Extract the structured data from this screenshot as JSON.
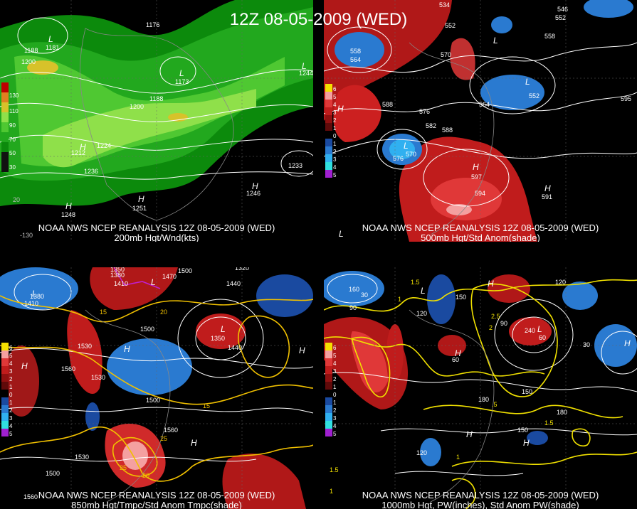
{
  "main_title": "12Z 08-05-2009 (WED)",
  "panels": [
    {
      "caption_line1": "NOAA NWS NCEP REANALYSIS 12Z 08-05-2009 (WED)",
      "caption_line2": "200mb Hgt/Wnd(kts)",
      "legend_values": [
        "130",
        "110",
        "90",
        "70",
        "50",
        "30"
      ],
      "contour_labels": [
        "1176",
        "1188",
        "1200",
        "1181",
        "1173",
        "1188",
        "1200",
        "1224",
        "1212",
        "1236",
        "1233",
        "1246",
        "1251",
        "1248",
        "1244"
      ],
      "pressure_centers": [
        "L",
        "L",
        "L",
        "H",
        "H",
        "H",
        "H"
      ],
      "axis_ticks": [
        "-130",
        "20"
      ]
    },
    {
      "caption_line1": "NOAA NWS NCEP REANALYSIS 12Z 08-05-2009 (WED)",
      "caption_line2": "500mb Hgt/Std Anom(shade)",
      "legend_values": [
        "6",
        "5",
        "4",
        "3",
        "2",
        "1",
        "0",
        "1",
        "2",
        "3",
        "4",
        "5"
      ],
      "contour_labels": [
        "534",
        "546",
        "552",
        "552",
        "558",
        "558",
        "564",
        "570",
        "576",
        "582",
        "588",
        "588",
        "564",
        "552",
        "594",
        "597",
        "576",
        "570",
        "591",
        "595"
      ],
      "pressure_centers": [
        "L",
        "L",
        "L",
        "H",
        "H",
        "H",
        "L"
      ]
    },
    {
      "caption_line1": "NOAA NWS NCEP REANALYSIS 12Z 08-05-2009 (WED)",
      "caption_line2": "850mb Hgt/Tmpc/Std Anom Tmpc(shade)",
      "legend_values": [
        "6",
        "5",
        "4",
        "3",
        "2",
        "1",
        "0",
        "1",
        "2",
        "3",
        "4",
        "5"
      ],
      "contour_labels": [
        "1350",
        "1380",
        "1410",
        "1470",
        "1500",
        "1320",
        "1440",
        "1380",
        "1410",
        "1500",
        "1530",
        "1560",
        "1530",
        "1560",
        "1500",
        "1560",
        "1530",
        "1500",
        "1350",
        "1440",
        "15",
        "20",
        "25",
        "25",
        "20",
        "15"
      ],
      "pressure_centers": [
        "L",
        "L",
        "H",
        "H",
        "H",
        "H",
        "L"
      ]
    },
    {
      "caption_line1": "NOAA NWS NCEP REANALYSIS 12Z 08-05-2009 (WED)",
      "caption_line2": "1000mb Hgt, PW(inches), Std Anom PW(shade)",
      "legend_values": [
        "6",
        "5",
        "4",
        "3",
        "2",
        "1",
        "0",
        "1",
        "2",
        "3",
        "4",
        "5"
      ],
      "contour_labels": [
        "160",
        "30",
        "90",
        "120",
        "150",
        "60",
        "120",
        "90",
        "150",
        "180",
        "180",
        "150",
        "120",
        "60",
        "30",
        "240",
        "1.5",
        "1",
        "2",
        "2.5",
        "1.5",
        "1",
        ".5",
        "1.5",
        "1"
      ],
      "pressure_centers": [
        "L",
        "H",
        "H",
        "H",
        "L",
        "H",
        "H"
      ]
    }
  ]
}
